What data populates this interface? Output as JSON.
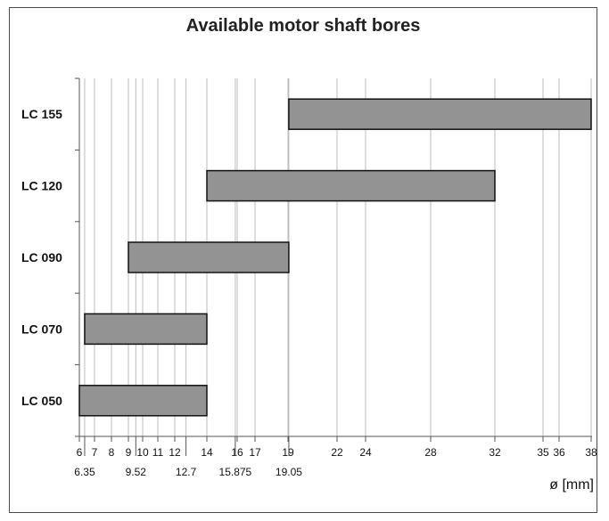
{
  "chart_data": {
    "type": "bar",
    "orientation": "horizontal-range",
    "title": "Available motor shaft bores",
    "xlabel": "ø [mm]",
    "categories": [
      "LC 155",
      "LC 120",
      "LC 090",
      "LC 070",
      "LC 050"
    ],
    "ranges": [
      {
        "category": "LC 155",
        "min": 19.05,
        "max": 38
      },
      {
        "category": "LC 120",
        "min": 14,
        "max": 32
      },
      {
        "category": "LC 090",
        "min": 9,
        "max": 19.05
      },
      {
        "category": "LC 070",
        "min": 6.35,
        "max": 14
      },
      {
        "category": "LC 050",
        "min": 6,
        "max": 14
      }
    ],
    "xticks_major": [
      "6",
      "7",
      "8",
      "9",
      "10",
      "11",
      "12",
      "14",
      "16",
      "17",
      "19",
      "22",
      "24",
      "28",
      "32",
      "35",
      "36",
      "38"
    ],
    "xticks_minor": [
      "6.35",
      "9.52",
      "12.7",
      "15.875",
      "19.05"
    ],
    "grid": true,
    "colors": {
      "bar_fill": "#939393",
      "bar_stroke": "#111111",
      "grid": "#bdbdbd"
    }
  }
}
